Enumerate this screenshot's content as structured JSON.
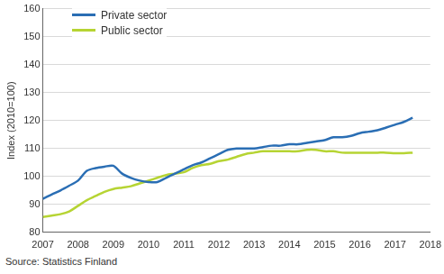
{
  "chart_data": {
    "type": "line",
    "y_label": "Index (2010=100)",
    "source": "Source: Statistics Finland",
    "x": [
      2007.0,
      2007.25,
      2007.5,
      2007.75,
      2008.0,
      2008.25,
      2008.5,
      2008.75,
      2009.0,
      2009.25,
      2009.5,
      2009.75,
      2010.0,
      2010.25,
      2010.5,
      2010.75,
      2011.0,
      2011.25,
      2011.5,
      2011.75,
      2012.0,
      2012.25,
      2012.5,
      2012.75,
      2013.0,
      2013.25,
      2013.5,
      2013.75,
      2014.0,
      2014.25,
      2014.5,
      2014.75,
      2015.0,
      2015.25,
      2015.5,
      2015.75,
      2016.0,
      2016.25,
      2016.5,
      2016.75,
      2017.0,
      2017.25,
      2017.5
    ],
    "series": [
      {
        "name": "Private sector",
        "color": "#2a6eb4",
        "values": [
          92,
          93.5,
          95,
          96.7,
          98.5,
          102,
          103,
          103.5,
          103.8,
          101,
          99.5,
          98.5,
          98,
          98,
          99.5,
          101,
          102.5,
          104,
          105,
          106.5,
          108,
          109.5,
          110,
          110,
          110,
          110.5,
          111,
          111,
          111.5,
          111.5,
          112,
          112.5,
          113,
          114,
          114,
          114.5,
          115.5,
          116,
          116.5,
          117.5,
          118.5,
          119.5,
          121
        ]
      },
      {
        "name": "Public sector",
        "color": "#b6d433",
        "values": [
          85.5,
          86,
          86.5,
          87.5,
          89.5,
          91.5,
          93,
          94.5,
          95.5,
          96,
          96.5,
          97.5,
          98.5,
          99.5,
          100.5,
          101,
          101.5,
          103,
          104,
          104.5,
          105.5,
          106,
          107,
          108,
          108.5,
          109,
          109,
          109,
          109,
          109,
          109.5,
          109.5,
          109,
          109,
          108.5,
          108.5,
          108.5,
          108.5,
          108.5,
          108.5,
          108.3,
          108.3,
          108.5
        ]
      }
    ],
    "xlim": [
      2007,
      2018
    ],
    "xticks": [
      2007,
      2008,
      2009,
      2010,
      2011,
      2012,
      2013,
      2014,
      2015,
      2016,
      2017,
      2018
    ],
    "ylim": [
      80,
      160
    ],
    "yticks": [
      80,
      90,
      100,
      110,
      120,
      130,
      140,
      150,
      160
    ],
    "grid": true,
    "legend": "top-left"
  }
}
